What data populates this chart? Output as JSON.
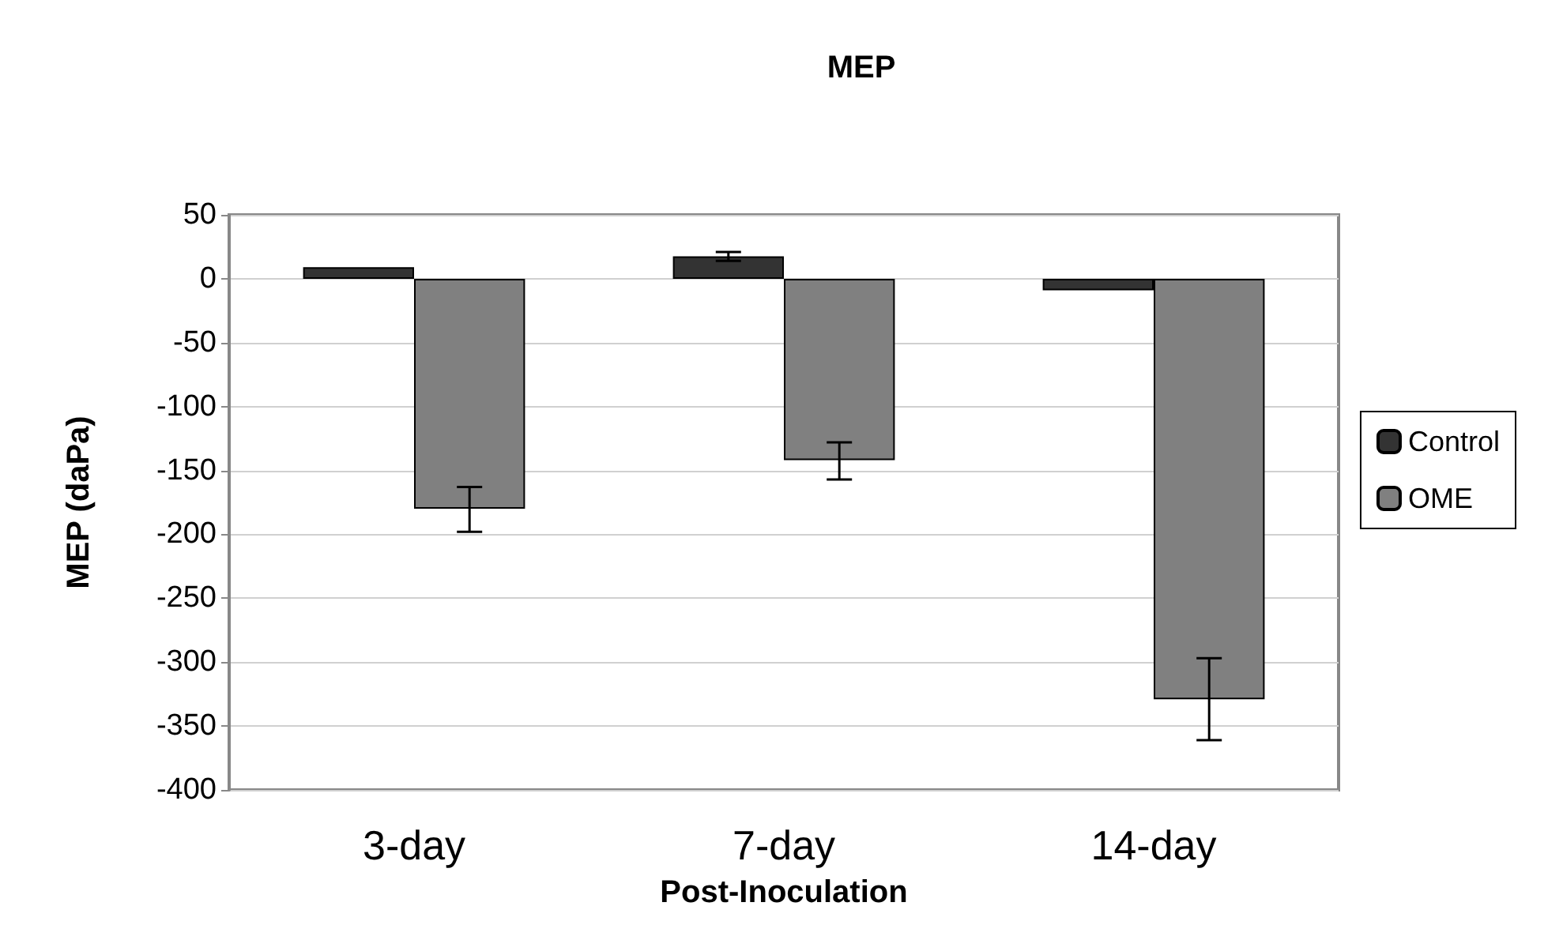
{
  "chart_data": {
    "type": "bar",
    "title": "MEP",
    "xlabel": "Post-Inoculation",
    "ylabel": "MEP (daPa)",
    "categories": [
      "3-day",
      "7-day",
      "14-day"
    ],
    "series": [
      {
        "name": "Control",
        "color": "#333333",
        "values": [
          9,
          17.5,
          -9
        ],
        "errors": [
          null,
          [
            14,
            21
          ],
          null
        ]
      },
      {
        "name": "OME",
        "color": "#808080",
        "values": [
          -180,
          -142,
          -329
        ],
        "errors": [
          [
            -198,
            -163
          ],
          [
            -157,
            -128
          ],
          [
            -361,
            -297
          ]
        ]
      }
    ],
    "ylim": [
      -400,
      50
    ],
    "yticks": [
      -400,
      -350,
      -300,
      -250,
      -200,
      -150,
      -100,
      -50,
      0,
      50
    ],
    "grid": "y",
    "legend": "right"
  }
}
